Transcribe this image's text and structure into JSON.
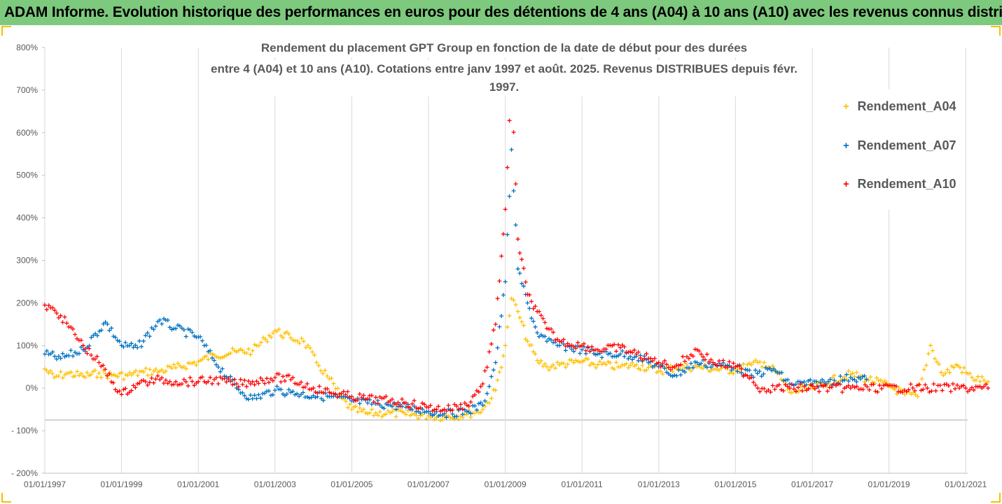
{
  "banner": {
    "title": "ADAM Informe. Evolution historique des performances en euros pour des détentions de 4 ans (A04) à 10 ans (A10) avec les revenus connus distribués",
    "background": "#7dc97d",
    "frame_color": "#f2c200"
  },
  "chart_data": {
    "type": "scatter",
    "title_line1": "Rendement du placement GPT Group en fonction de la date de début pour des durées",
    "title_line2": "entre 4 (A04) et 10 ans (A10). Cotations entre janv 1997 et août. 2025. Revenus DISTRIBUES depuis févr. 1997.",
    "x_tick_labels": [
      "01/01/1997",
      "01/01/1999",
      "01/01/2001",
      "01/01/2003",
      "01/01/2005",
      "01/01/2007",
      "01/01/2009",
      "01/01/2011",
      "01/01/2013",
      "01/01/2015",
      "01/01/2017",
      "01/01/2019",
      "01/01/2021"
    ],
    "x_range": [
      "1997-01-01",
      "2022-01-01"
    ],
    "y_tick_labels": [
      "- 200%",
      "- 100%",
      "0%",
      "100%",
      "200%",
      "300%",
      "400%",
      "500%",
      "600%",
      "700%",
      "800%"
    ],
    "ylim": [
      -200,
      800
    ],
    "y_unit": "%",
    "grid": "vertical gridlines at each x tick, horizontal line at -75%",
    "legend_position": "right",
    "series": [
      {
        "name": "Rendement_A04",
        "color": "#ffc000",
        "marker": "+",
        "points": [
          [
            "1997-01-01",
            45
          ],
          [
            "1997-04-01",
            25
          ],
          [
            "1997-08-01",
            35
          ],
          [
            "1998-01-01",
            28
          ],
          [
            "1998-06-01",
            35
          ],
          [
            "1998-10-01",
            30
          ],
          [
            "1999-03-01",
            30
          ],
          [
            "1999-08-01",
            38
          ],
          [
            "2000-01-01",
            40
          ],
          [
            "2000-06-01",
            48
          ],
          [
            "2001-01-01",
            62
          ],
          [
            "2001-06-01",
            78
          ],
          [
            "2002-01-01",
            85
          ],
          [
            "2002-06-01",
            88
          ],
          [
            "2002-10-01",
            115
          ],
          [
            "2003-01-01",
            135
          ],
          [
            "2003-06-01",
            118
          ],
          [
            "2003-10-01",
            110
          ],
          [
            "2004-02-01",
            60
          ],
          [
            "2004-06-01",
            22
          ],
          [
            "2004-10-01",
            -25
          ],
          [
            "2005-01-01",
            -50
          ],
          [
            "2005-06-01",
            -60
          ],
          [
            "2006-01-01",
            -58
          ],
          [
            "2006-06-01",
            -62
          ],
          [
            "2007-01-01",
            -65
          ],
          [
            "2007-06-01",
            -67
          ],
          [
            "2008-01-01",
            -62
          ],
          [
            "2008-06-01",
            -50
          ],
          [
            "2008-10-01",
            -5
          ],
          [
            "2009-01-01",
            100
          ],
          [
            "2009-03-01",
            210
          ],
          [
            "2009-05-01",
            180
          ],
          [
            "2009-08-01",
            110
          ],
          [
            "2009-11-01",
            65
          ],
          [
            "2010-02-01",
            50
          ],
          [
            "2010-06-01",
            55
          ],
          [
            "2011-01-01",
            62
          ],
          [
            "2011-06-01",
            55
          ],
          [
            "2012-01-01",
            50
          ],
          [
            "2012-06-01",
            55
          ],
          [
            "2013-01-01",
            40
          ],
          [
            "2013-06-01",
            48
          ],
          [
            "2014-01-01",
            50
          ],
          [
            "2014-06-01",
            45
          ],
          [
            "2015-01-01",
            42
          ],
          [
            "2015-06-01",
            55
          ],
          [
            "2015-10-01",
            60
          ],
          [
            "2016-02-01",
            35
          ],
          [
            "2016-06-01",
            -10
          ],
          [
            "2017-01-01",
            0
          ],
          [
            "2017-06-01",
            15
          ],
          [
            "2018-01-01",
            32
          ],
          [
            "2018-06-01",
            22
          ],
          [
            "2019-01-01",
            5
          ],
          [
            "2019-06-01",
            -15
          ],
          [
            "2019-10-01",
            -20
          ],
          [
            "2020-02-01",
            100
          ],
          [
            "2020-06-01",
            30
          ],
          [
            "2020-10-01",
            55
          ],
          [
            "2021-03-01",
            25
          ],
          [
            "2021-08-01",
            15
          ]
        ]
      },
      {
        "name": "Rendement_A07",
        "color": "#0070c0",
        "marker": "+",
        "points": [
          [
            "1997-01-01",
            80
          ],
          [
            "1997-06-01",
            70
          ],
          [
            "1998-01-01",
            90
          ],
          [
            "1998-08-01",
            155
          ],
          [
            "1999-01-01",
            100
          ],
          [
            "1999-06-01",
            95
          ],
          [
            "2000-01-01",
            160
          ],
          [
            "2000-06-01",
            140
          ],
          [
            "2001-01-01",
            120
          ],
          [
            "2001-06-01",
            65
          ],
          [
            "2002-01-01",
            0
          ],
          [
            "2002-06-01",
            -25
          ],
          [
            "2003-01-01",
            -5
          ],
          [
            "2003-06-01",
            -10
          ],
          [
            "2004-01-01",
            -18
          ],
          [
            "2004-06-01",
            -20
          ],
          [
            "2005-01-01",
            -30
          ],
          [
            "2005-06-01",
            -35
          ],
          [
            "2006-01-01",
            -40
          ],
          [
            "2006-06-01",
            -45
          ],
          [
            "2007-01-01",
            -55
          ],
          [
            "2007-06-01",
            -60
          ],
          [
            "2008-01-01",
            -55
          ],
          [
            "2008-06-01",
            -40
          ],
          [
            "2008-10-01",
            60
          ],
          [
            "2009-01-01",
            250
          ],
          [
            "2009-03-01",
            560
          ],
          [
            "2009-05-01",
            280
          ],
          [
            "2009-08-01",
            200
          ],
          [
            "2009-11-01",
            130
          ],
          [
            "2010-02-01",
            110
          ],
          [
            "2010-06-01",
            100
          ],
          [
            "2011-01-01",
            90
          ],
          [
            "2011-06-01",
            80
          ],
          [
            "2012-01-01",
            80
          ],
          [
            "2012-06-01",
            75
          ],
          [
            "2013-01-01",
            50
          ],
          [
            "2013-06-01",
            30
          ],
          [
            "2014-01-01",
            60
          ],
          [
            "2014-06-01",
            55
          ],
          [
            "2015-01-01",
            50
          ],
          [
            "2015-06-01",
            30
          ],
          [
            "2016-01-01",
            45
          ],
          [
            "2016-06-01",
            10
          ],
          [
            "2017-01-01",
            10
          ],
          [
            "2017-06-01",
            15
          ],
          [
            "2018-01-01",
            25
          ],
          [
            "2018-06-01",
            20
          ]
        ]
      },
      {
        "name": "Rendement_A10",
        "color": "#ff0000",
        "marker": "+",
        "points": [
          [
            "1997-01-01",
            195
          ],
          [
            "1997-06-01",
            170
          ],
          [
            "1998-01-01",
            100
          ],
          [
            "1998-06-01",
            60
          ],
          [
            "1999-01-01",
            -15
          ],
          [
            "1999-06-01",
            10
          ],
          [
            "2000-01-01",
            20
          ],
          [
            "2000-06-01",
            15
          ],
          [
            "2001-01-01",
            15
          ],
          [
            "2001-06-01",
            20
          ],
          [
            "2002-01-01",
            10
          ],
          [
            "2002-06-01",
            15
          ],
          [
            "2003-01-01",
            25
          ],
          [
            "2003-06-01",
            20
          ],
          [
            "2004-01-01",
            0
          ],
          [
            "2004-06-01",
            -10
          ],
          [
            "2005-01-01",
            -20
          ],
          [
            "2005-06-01",
            -25
          ],
          [
            "2006-01-01",
            -30
          ],
          [
            "2006-06-01",
            -35
          ],
          [
            "2007-01-01",
            -45
          ],
          [
            "2007-06-01",
            -50
          ],
          [
            "2008-01-01",
            -40
          ],
          [
            "2008-06-01",
            10
          ],
          [
            "2008-10-01",
            150
          ],
          [
            "2009-01-01",
            420
          ],
          [
            "2009-03-01",
            720
          ],
          [
            "2009-05-01",
            350
          ],
          [
            "2009-08-01",
            220
          ],
          [
            "2009-11-01",
            180
          ],
          [
            "2010-02-01",
            140
          ],
          [
            "2010-06-01",
            110
          ],
          [
            "2011-01-01",
            100
          ],
          [
            "2011-06-01",
            90
          ],
          [
            "2012-01-01",
            95
          ],
          [
            "2012-06-01",
            80
          ],
          [
            "2013-01-01",
            60
          ],
          [
            "2013-06-01",
            50
          ],
          [
            "2014-01-01",
            90
          ],
          [
            "2014-06-01",
            60
          ],
          [
            "2015-01-01",
            50
          ],
          [
            "2015-06-01",
            25
          ],
          [
            "2015-08-01",
            0
          ],
          [
            "2016-06-01",
            0
          ],
          [
            "2018-01-01",
            0
          ],
          [
            "2020-01-01",
            0
          ],
          [
            "2021-01-01",
            0
          ],
          [
            "2021-08-01",
            0
          ]
        ]
      }
    ]
  }
}
